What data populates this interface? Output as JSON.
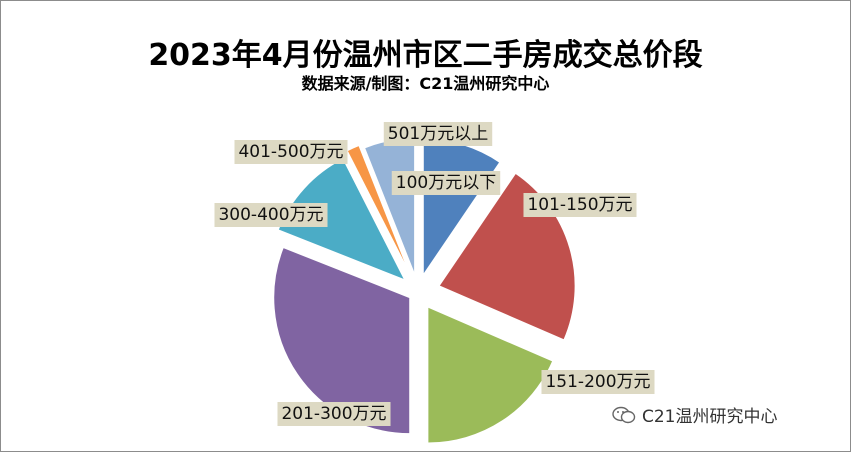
{
  "title": "2023年4月份温州市区二手房成交总价段",
  "subtitle": "数据来源/制图：C21温州研究中心",
  "watermark": "C21温州研究中心",
  "chart_data": {
    "type": "pie",
    "title": "2023年4月份温州市区二手房成交总价段",
    "subtitle": "数据来源/制图：C21温州研究中心",
    "exploded": true,
    "slices": [
      {
        "label": "100万元以下",
        "value": 9.5,
        "color": "#4f81bd"
      },
      {
        "label": "101-150万元",
        "value": 22,
        "color": "#c0504d"
      },
      {
        "label": "151-200万元",
        "value": 18.5,
        "color": "#9bbb59"
      },
      {
        "label": "201-300万元",
        "value": 31,
        "color": "#8064a2"
      },
      {
        "label": "300-400万元",
        "value": 11.5,
        "color": "#4bacc6"
      },
      {
        "label": "401-500万元",
        "value": 1.5,
        "color": "#f79646"
      },
      {
        "label": "501万元以上",
        "value": 6,
        "color": "#95b3d7"
      }
    ]
  }
}
